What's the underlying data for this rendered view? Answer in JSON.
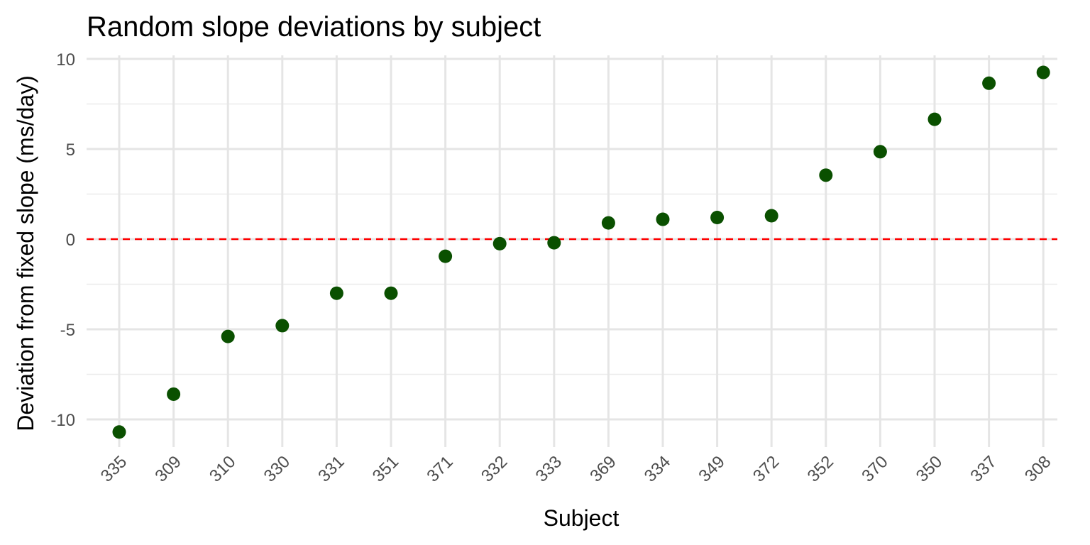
{
  "chart_data": {
    "type": "scatter",
    "title": "Random slope deviations by subject",
    "xlabel": "Subject",
    "ylabel": "Deviation from fixed slope (ms/day)",
    "categories": [
      "335",
      "309",
      "310",
      "330",
      "331",
      "351",
      "371",
      "332",
      "333",
      "369",
      "334",
      "349",
      "372",
      "352",
      "370",
      "350",
      "337",
      "308"
    ],
    "values": [
      -10.7,
      -8.6,
      -5.4,
      -4.8,
      -3.0,
      -3.0,
      -0.95,
      -0.25,
      -0.2,
      0.9,
      1.1,
      1.2,
      1.3,
      3.55,
      4.85,
      6.65,
      8.65,
      9.25
    ],
    "ylim": [
      -12,
      10
    ],
    "yticks": [
      -10,
      -5,
      0,
      5,
      10
    ],
    "ytick_labels": [
      "-10",
      "-5",
      "0",
      "5",
      "10"
    ],
    "reference_line": {
      "y": 0,
      "style": "dashed",
      "color": "#ff0000"
    },
    "point_color": "#0a5000",
    "grid": true,
    "x_tick_rotation_deg": 45
  }
}
